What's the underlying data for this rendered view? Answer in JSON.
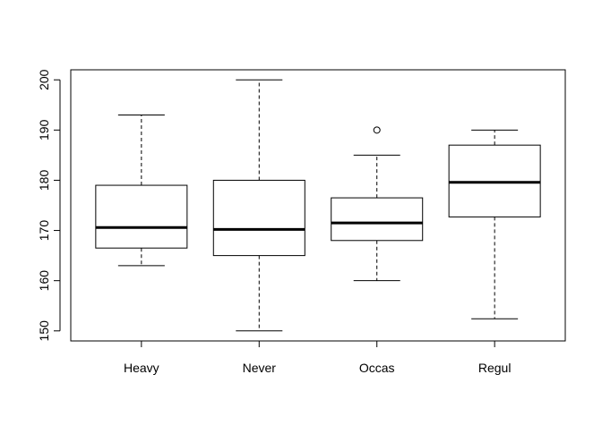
{
  "chart_data": {
    "type": "boxplot",
    "title": "",
    "xlabel": "",
    "ylabel": "",
    "categories": [
      "Heavy",
      "Never",
      "Occas",
      "Regul"
    ],
    "boxes": [
      {
        "category": "Heavy",
        "whisker_low": 163,
        "q1": 166.5,
        "median": 170.6,
        "q3": 179,
        "whisker_high": 193,
        "outliers": []
      },
      {
        "category": "Never",
        "whisker_low": 150,
        "q1": 165,
        "median": 170.2,
        "q3": 180,
        "whisker_high": 200,
        "outliers": []
      },
      {
        "category": "Occas",
        "whisker_low": 160,
        "q1": 168,
        "median": 171.5,
        "q3": 176.5,
        "whisker_high": 185,
        "outliers": [
          190
        ]
      },
      {
        "category": "Regul",
        "whisker_low": 152.4,
        "q1": 172.7,
        "median": 179.6,
        "q3": 187,
        "whisker_high": 190,
        "outliers": []
      }
    ],
    "y_ticks": [
      150,
      160,
      170,
      180,
      190,
      200
    ],
    "ylim": [
      148,
      202
    ],
    "grid": false,
    "legend": "none",
    "colors": {
      "box_fill": "#ffffff",
      "stroke": "#000000"
    }
  }
}
